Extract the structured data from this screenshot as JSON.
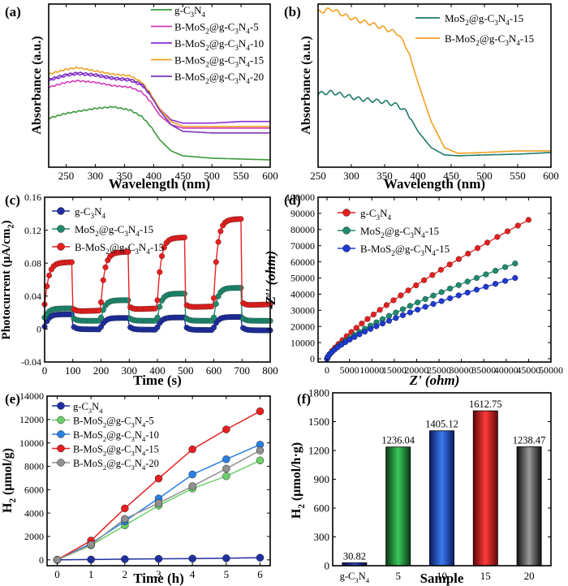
{
  "figure": {
    "panels": [
      "(a)",
      "(b)",
      "(c)",
      "(d)",
      "(e)",
      "(f)"
    ]
  },
  "chart_data": [
    {
      "panel": "(a)",
      "type": "line",
      "xlabel": "Wavelength (nm)",
      "ylabel": "Absorbance (a.u.)",
      "xlim": [
        220,
        600
      ],
      "xticks": [
        250,
        300,
        350,
        400,
        450,
        500,
        550,
        600
      ],
      "ylim": [
        0,
        1
      ],
      "legend_position": "top-right",
      "series": [
        {
          "name": "g-C3N4",
          "color": "#3a9a3a",
          "x": [
            220,
            250,
            300,
            330,
            360,
            380,
            395,
            410,
            430,
            450,
            500,
            550,
            600
          ],
          "y": [
            0.3,
            0.33,
            0.36,
            0.37,
            0.35,
            0.31,
            0.25,
            0.17,
            0.1,
            0.07,
            0.055,
            0.05,
            0.045
          ]
        },
        {
          "name": "B-MoS2@g-C3N4-5",
          "color": "#d03ab8",
          "x": [
            220,
            250,
            270,
            300,
            330,
            360,
            380,
            395,
            410,
            430,
            450,
            500,
            550,
            600
          ],
          "y": [
            0.49,
            0.52,
            0.53,
            0.52,
            0.5,
            0.49,
            0.46,
            0.4,
            0.32,
            0.26,
            0.24,
            0.24,
            0.24,
            0.24
          ]
        },
        {
          "name": "B-MoS2@g-C3N4-10",
          "color": "#8a2fd0",
          "x": [
            220,
            250,
            270,
            300,
            330,
            360,
            380,
            395,
            410,
            430,
            450,
            500,
            550,
            600
          ],
          "y": [
            0.53,
            0.56,
            0.57,
            0.56,
            0.54,
            0.53,
            0.5,
            0.44,
            0.36,
            0.29,
            0.27,
            0.27,
            0.28,
            0.28
          ]
        },
        {
          "name": "B-MoS2@g-C3N4-15",
          "color": "#f0a020",
          "x": [
            220,
            250,
            270,
            300,
            330,
            360,
            380,
            395,
            410,
            430,
            450,
            500,
            550,
            600
          ],
          "y": [
            0.57,
            0.6,
            0.61,
            0.59,
            0.57,
            0.56,
            0.52,
            0.45,
            0.36,
            0.28,
            0.25,
            0.25,
            0.25,
            0.25
          ]
        },
        {
          "name": "B-MoS2@g-C3N4-20",
          "color": "#7a35b8",
          "x": [
            220,
            250,
            270,
            300,
            330,
            360,
            380,
            395,
            410,
            430,
            450,
            500,
            550,
            600
          ],
          "y": [
            0.54,
            0.57,
            0.58,
            0.57,
            0.55,
            0.54,
            0.51,
            0.44,
            0.35,
            0.26,
            0.22,
            0.21,
            0.21,
            0.21
          ]
        }
      ]
    },
    {
      "panel": "(b)",
      "type": "line",
      "xlabel": "Wavelength (nm)",
      "ylabel": "Absorbance (a.u.)",
      "xlim": [
        250,
        600
      ],
      "xticks": [
        250,
        300,
        350,
        400,
        450,
        500,
        550,
        600
      ],
      "ylim": [
        0,
        1
      ],
      "legend_position": "top-right",
      "series": [
        {
          "name": "MoS2@g-C3N4-15",
          "color": "#1f7a6a",
          "x": [
            250,
            270,
            290,
            310,
            330,
            350,
            370,
            385,
            400,
            420,
            440,
            460,
            500,
            550,
            600
          ],
          "y": [
            0.45,
            0.46,
            0.44,
            0.42,
            0.41,
            0.4,
            0.38,
            0.33,
            0.22,
            0.12,
            0.075,
            0.07,
            0.075,
            0.08,
            0.09
          ]
        },
        {
          "name": "B-MoS2@g-C3N4-15",
          "color": "#f0a020",
          "x": [
            250,
            270,
            290,
            310,
            330,
            350,
            370,
            385,
            400,
            420,
            440,
            460,
            500,
            550,
            600
          ],
          "y": [
            0.95,
            0.97,
            0.93,
            0.9,
            0.88,
            0.85,
            0.82,
            0.72,
            0.52,
            0.28,
            0.12,
            0.085,
            0.09,
            0.1,
            0.1
          ]
        }
      ]
    },
    {
      "panel": "(c)",
      "type": "line",
      "xlabel": "Time (s)",
      "ylabel": "Photocurrent (μA/cm2)",
      "xlim": [
        0,
        800
      ],
      "xticks": [
        0,
        100,
        200,
        300,
        400,
        500,
        600,
        700,
        800
      ],
      "ylim": [
        -0.04,
        0.16
      ],
      "yticks": [
        -0.04,
        0,
        0.04,
        0.08,
        0.12,
        0.16
      ],
      "legend_position": "top-left",
      "series": [
        {
          "name": "g-C3N4",
          "color": "#1f2fa0",
          "on_intervals": [
            [
              0,
              100
            ],
            [
              200,
              300
            ],
            [
              400,
              500
            ],
            [
              600,
              700
            ]
          ],
          "off_level": 0.0,
          "on_levels": [
            0.018,
            0.014,
            0.015,
            0.016
          ],
          "spike": 0.003,
          "drift": -0.008
        },
        {
          "name": "MoS2@g-C3N4-15",
          "color": "#1f8a6f",
          "off_level": 0.01,
          "on_levels": [
            0.025,
            0.035,
            0.043,
            0.05
          ],
          "spike": 0.004,
          "drift": 0.0
        },
        {
          "name": "B-MoS2@g-C3N4-15",
          "color": "#e62020",
          "off_level": 0.02,
          "on_levels": [
            0.08,
            0.09,
            0.105,
            0.125
          ],
          "spike": 0.01,
          "drift": 0.05
        }
      ]
    },
    {
      "panel": "(d)",
      "type": "line",
      "xlabel": "Z' (ohm)",
      "ylabel": "-Z'' (ohm)",
      "xlim": [
        -2000,
        50000
      ],
      "xticks": [
        0,
        5000,
        10000,
        15000,
        20000,
        25000,
        30000,
        35000,
        40000,
        45000,
        50000
      ],
      "ylim": [
        -2000,
        100000
      ],
      "yticks": [
        0,
        10000,
        20000,
        30000,
        40000,
        50000,
        60000,
        70000,
        80000,
        90000,
        100000
      ],
      "legend_position": "top-left",
      "series": [
        {
          "name": "g-C3N4",
          "color": "#e62020",
          "xmax": 45000,
          "ymax": 86000,
          "exponent": 0.78
        },
        {
          "name": "MoS2@g-C3N4-15",
          "color": "#1f8a6f",
          "xmax": 42000,
          "ymax": 59000,
          "exponent": 0.72
        },
        {
          "name": "B-MoS2@g-C3N4-15",
          "color": "#1f3ad0",
          "xmax": 42000,
          "ymax": 50000,
          "exponent": 0.68
        }
      ]
    },
    {
      "panel": "(e)",
      "type": "line",
      "xlabel": "Time (h)",
      "ylabel": "H2 (μmol/g)",
      "xlim": [
        -0.3,
        6.3
      ],
      "xticks": [
        0,
        1,
        2,
        3,
        4,
        5,
        6
      ],
      "ylim": [
        -500,
        14000
      ],
      "yticks": [
        0,
        2000,
        4000,
        6000,
        8000,
        10000,
        12000,
        14000
      ],
      "legend_position": "top-left",
      "x": [
        0,
        1,
        2,
        3,
        4,
        5,
        6
      ],
      "series": [
        {
          "name": "g-C3N4",
          "color": "#1f2fa0",
          "values": [
            0,
            30,
            60,
            90,
            110,
            140,
            185
          ]
        },
        {
          "name": "B-MoS2@g-C3N4-5",
          "color": "#6ccf6c",
          "values": [
            0,
            1250,
            2950,
            4650,
            6100,
            7150,
            8500
          ]
        },
        {
          "name": "B-MoS2@g-C3N4-10",
          "color": "#2a80e0",
          "values": [
            0,
            1400,
            3300,
            5250,
            7300,
            8600,
            9850
          ]
        },
        {
          "name": "B-MoS2@g-C3N4-15",
          "color": "#e62020",
          "values": [
            0,
            1650,
            4400,
            6950,
            9450,
            11150,
            12700
          ]
        },
        {
          "name": "B-MoS2@g-C3N4-20",
          "color": "#909090",
          "values": [
            0,
            1300,
            3500,
            4850,
            6300,
            7800,
            9350
          ]
        }
      ]
    },
    {
      "panel": "(f)",
      "type": "bar",
      "xlabel": "Sample",
      "ylabel": "H2 (μmol/h·g)",
      "ylim": [
        0,
        1800
      ],
      "yticks": [
        0,
        300,
        600,
        900,
        1200,
        1500,
        1800
      ],
      "categories": [
        "g-C3N4",
        "5",
        "10",
        "15",
        "20"
      ],
      "values": [
        30.82,
        1236.04,
        1405.12,
        1612.75,
        1238.47
      ],
      "value_labels": [
        "30.82",
        "1236.04",
        "1405.12",
        "1612.75",
        "1238.47"
      ],
      "colors": [
        "#1f2fa0",
        "#1f9a3a",
        "#1f4ad8",
        "#e81010",
        "#3a3a3a"
      ]
    }
  ]
}
